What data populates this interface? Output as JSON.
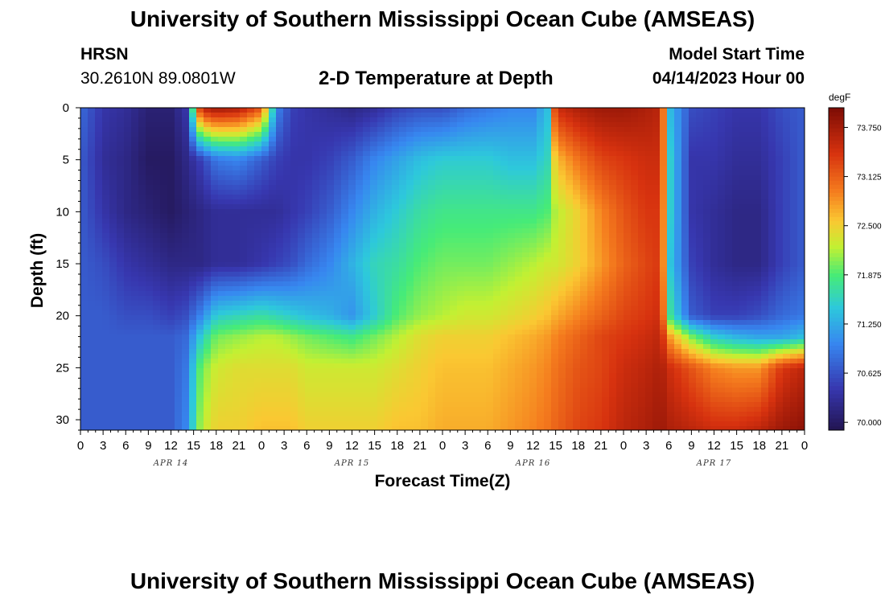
{
  "header": {
    "title": "University of Southern Mississippi Ocean Cube (AMSEAS)",
    "station": "HRSN",
    "coords": "30.2610N  89.0801W",
    "plot_title": "2-D Temperature at Depth",
    "start_label": "Model Start Time",
    "start_value": "04/14/2023 Hour 00"
  },
  "footer": {
    "title": "University of Southern Mississippi Ocean Cube (AMSEAS)"
  },
  "chart_data": {
    "type": "heatmap",
    "title": "2-D Temperature at Depth",
    "xlabel": "Forecast Time(Z)",
    "ylabel": "Depth (ft)",
    "xlim": [
      0,
      96
    ],
    "ylim": [
      31,
      0
    ],
    "x_tick_values": [
      0,
      3,
      6,
      9,
      12,
      15,
      18,
      21,
      24,
      27,
      30,
      33,
      36,
      39,
      42,
      45,
      48,
      51,
      54,
      57,
      60,
      63,
      66,
      69,
      72,
      75,
      78,
      81,
      84,
      87,
      90,
      93,
      96
    ],
    "x_tick_labels": [
      "0",
      "3",
      "6",
      "9",
      "12",
      "15",
      "18",
      "21",
      "0",
      "3",
      "6",
      "9",
      "12",
      "15",
      "18",
      "21",
      "0",
      "3",
      "6",
      "9",
      "12",
      "15",
      "18",
      "21",
      "0",
      "3",
      "6",
      "9",
      "12",
      "15",
      "18",
      "21",
      "0"
    ],
    "day_labels": [
      {
        "label": "APR 14",
        "x": 12
      },
      {
        "label": "APR 15",
        "x": 36
      },
      {
        "label": "APR 16",
        "x": 60
      },
      {
        "label": "APR 17",
        "x": 84
      }
    ],
    "y_ticks": [
      0,
      5,
      10,
      15,
      20,
      25,
      30
    ],
    "colorbar": {
      "unit": "degF",
      "min": 69.9,
      "max": 74.0,
      "ticks": [
        "70.000",
        "70.625",
        "71.250",
        "71.875",
        "72.500",
        "73.125",
        "73.750"
      ],
      "tick_values": [
        70.0,
        70.625,
        71.25,
        71.875,
        72.5,
        73.125,
        73.75
      ]
    },
    "depth_rows": [
      0,
      5,
      10,
      15,
      20,
      22,
      25,
      31
    ],
    "time_columns": [
      0,
      3,
      6,
      9,
      12,
      14,
      16,
      18,
      21,
      24,
      26,
      28,
      30,
      33,
      36,
      39,
      42,
      45,
      48,
      51,
      54,
      57,
      60,
      62,
      63,
      66,
      69,
      72,
      75,
      77,
      78,
      81,
      84,
      87,
      90,
      93,
      96
    ],
    "temperature_rows": [
      [
        70.8,
        70.4,
        70.3,
        70.1,
        70.1,
        70.4,
        73.6,
        73.8,
        73.7,
        73.2,
        71.0,
        70.5,
        70.4,
        70.3,
        70.2,
        70.3,
        70.5,
        70.6,
        70.6,
        70.8,
        70.9,
        71.0,
        71.0,
        71.4,
        73.5,
        73.7,
        73.8,
        73.8,
        73.7,
        73.6,
        71.4,
        70.6,
        70.5,
        70.4,
        70.4,
        70.6,
        70.7
      ],
      [
        70.7,
        70.3,
        70.2,
        70.0,
        70.0,
        70.2,
        70.5,
        70.9,
        71.0,
        70.7,
        70.5,
        70.4,
        70.4,
        70.5,
        70.7,
        71.0,
        71.2,
        71.4,
        71.5,
        71.5,
        71.5,
        71.4,
        71.4,
        71.6,
        72.6,
        73.0,
        73.3,
        73.4,
        73.5,
        73.5,
        71.6,
        70.4,
        70.4,
        70.3,
        70.3,
        70.5,
        70.7
      ],
      [
        70.7,
        70.4,
        70.2,
        70.1,
        70.0,
        70.1,
        70.2,
        70.3,
        70.3,
        70.3,
        70.3,
        70.4,
        70.5,
        70.7,
        71.0,
        71.3,
        71.5,
        71.7,
        71.8,
        71.8,
        71.8,
        71.8,
        71.8,
        71.9,
        72.2,
        72.5,
        72.9,
        73.2,
        73.4,
        73.4,
        71.6,
        70.4,
        70.3,
        70.2,
        70.2,
        70.5,
        70.7
      ],
      [
        70.7,
        70.6,
        70.4,
        70.3,
        70.2,
        70.2,
        70.2,
        70.3,
        70.3,
        70.4,
        70.5,
        70.6,
        70.8,
        71.0,
        71.3,
        71.6,
        71.7,
        71.9,
        72.0,
        72.0,
        72.0,
        72.1,
        72.2,
        72.3,
        72.3,
        72.5,
        72.8,
        73.1,
        73.3,
        73.4,
        71.5,
        70.5,
        70.3,
        70.2,
        70.2,
        70.5,
        70.7
      ],
      [
        70.7,
        70.7,
        70.6,
        70.6,
        70.5,
        70.6,
        71.0,
        71.5,
        71.6,
        71.7,
        71.6,
        71.5,
        71.4,
        71.3,
        71.1,
        71.5,
        71.9,
        72.1,
        72.2,
        72.3,
        72.3,
        72.4,
        72.5,
        72.6,
        72.7,
        72.9,
        73.1,
        73.3,
        73.4,
        73.5,
        71.8,
        70.7,
        70.5,
        70.5,
        70.6,
        70.8,
        70.9
      ],
      [
        70.7,
        70.7,
        70.7,
        70.7,
        70.7,
        70.8,
        71.5,
        72.0,
        72.1,
        72.2,
        72.2,
        72.1,
        72.0,
        71.9,
        71.8,
        72.0,
        72.2,
        72.4,
        72.5,
        72.5,
        72.5,
        72.6,
        72.7,
        72.8,
        72.9,
        73.1,
        73.3,
        73.4,
        73.5,
        73.6,
        72.8,
        72.0,
        71.5,
        71.3,
        71.2,
        71.2,
        71.4
      ],
      [
        70.7,
        70.7,
        70.7,
        70.7,
        70.7,
        70.9,
        72.0,
        72.3,
        72.4,
        72.4,
        72.4,
        72.4,
        72.3,
        72.3,
        72.3,
        72.3,
        72.4,
        72.5,
        72.6,
        72.6,
        72.6,
        72.7,
        72.8,
        72.9,
        73.0,
        73.2,
        73.3,
        73.5,
        73.6,
        73.7,
        73.5,
        73.2,
        72.9,
        72.8,
        72.8,
        73.4,
        73.6
      ],
      [
        70.7,
        70.7,
        70.7,
        70.7,
        70.7,
        71.0,
        72.2,
        72.5,
        72.5,
        72.6,
        72.6,
        72.6,
        72.5,
        72.5,
        72.5,
        72.5,
        72.6,
        72.6,
        72.7,
        72.7,
        72.7,
        72.8,
        72.9,
        73.0,
        73.1,
        73.3,
        73.4,
        73.6,
        73.7,
        73.8,
        73.7,
        73.6,
        73.5,
        73.5,
        73.6,
        73.8,
        73.9
      ]
    ]
  }
}
